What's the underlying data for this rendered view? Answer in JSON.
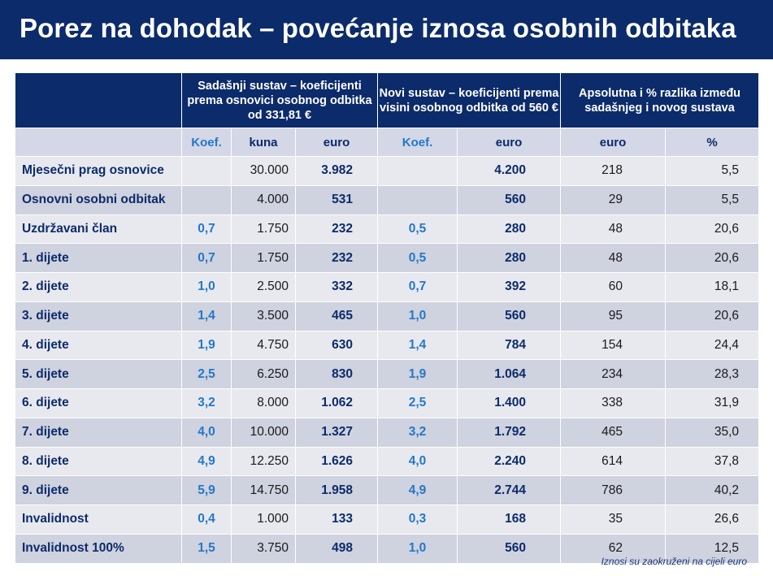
{
  "title": "Porez na dohodak – povećanje iznosa osobnih odbitaka",
  "header": {
    "group1": "Sadašnji sustav – koeficijenti prema osnovici osobnog odbitka od 331,81 €",
    "group2": "Novi sustav – koeficijenti prema visini osobnog odbitka od 560 €",
    "group3": "Apsolutna i % razlika između sadašnjeg i novog sustava"
  },
  "subheader": {
    "koef1": "Koef.",
    "kuna": "kuna",
    "euro1": "euro",
    "koef2": "Koef.",
    "euro2": "euro",
    "euro3": "euro",
    "pct": "%"
  },
  "rows": [
    {
      "label": "Mjesečni prag osnovice",
      "koef1": "",
      "kuna": "30.000",
      "euro1": "3.982",
      "koef2": "",
      "euro2": "4.200",
      "diff": "218",
      "pct": "5,5"
    },
    {
      "label": "Osnovni osobni odbitak",
      "koef1": "",
      "kuna": "4.000",
      "euro1": "531",
      "koef2": "",
      "euro2": "560",
      "diff": "29",
      "pct": "5,5"
    },
    {
      "label": "Uzdržavani član",
      "koef1": "0,7",
      "kuna": "1.750",
      "euro1": "232",
      "koef2": "0,5",
      "euro2": "280",
      "diff": "48",
      "pct": "20,6"
    },
    {
      "label": "1. dijete",
      "koef1": "0,7",
      "kuna": "1.750",
      "euro1": "232",
      "koef2": "0,5",
      "euro2": "280",
      "diff": "48",
      "pct": "20,6"
    },
    {
      "label": "2. dijete",
      "koef1": "1,0",
      "kuna": "2.500",
      "euro1": "332",
      "koef2": "0,7",
      "euro2": "392",
      "diff": "60",
      "pct": "18,1"
    },
    {
      "label": "3. dijete",
      "koef1": "1,4",
      "kuna": "3.500",
      "euro1": "465",
      "koef2": "1,0",
      "euro2": "560",
      "diff": "95",
      "pct": "20,6"
    },
    {
      "label": "4. dijete",
      "koef1": "1,9",
      "kuna": "4.750",
      "euro1": "630",
      "koef2": "1,4",
      "euro2": "784",
      "diff": "154",
      "pct": "24,4"
    },
    {
      "label": "5. dijete",
      "koef1": "2,5",
      "kuna": "6.250",
      "euro1": "830",
      "koef2": "1,9",
      "euro2": "1.064",
      "diff": "234",
      "pct": "28,3"
    },
    {
      "label": "6. dijete",
      "koef1": "3,2",
      "kuna": "8.000",
      "euro1": "1.062",
      "koef2": "2,5",
      "euro2": "1.400",
      "diff": "338",
      "pct": "31,9"
    },
    {
      "label": "7. dijete",
      "koef1": "4,0",
      "kuna": "10.000",
      "euro1": "1.327",
      "koef2": "3,2",
      "euro2": "1.792",
      "diff": "465",
      "pct": "35,0"
    },
    {
      "label": "8. dijete",
      "koef1": "4,9",
      "kuna": "12.250",
      "euro1": "1.626",
      "koef2": "4,0",
      "euro2": "2.240",
      "diff": "614",
      "pct": "37,8"
    },
    {
      "label": "9. dijete",
      "koef1": "5,9",
      "kuna": "14.750",
      "euro1": "1.958",
      "koef2": "4,9",
      "euro2": "2.744",
      "diff": "786",
      "pct": "40,2"
    },
    {
      "label": "Invalidnost",
      "koef1": "0,4",
      "kuna": "1.000",
      "euro1": "133",
      "koef2": "0,3",
      "euro2": "168",
      "diff": "35",
      "pct": "26,6"
    },
    {
      "label": "Invalidnost 100%",
      "koef1": "1,5",
      "kuna": "3.750",
      "euro1": "498",
      "koef2": "1,0",
      "euro2": "560",
      "diff": "62",
      "pct": "12,5"
    }
  ],
  "footnote": "Iznosi su zaokruženi na cijeli euro"
}
